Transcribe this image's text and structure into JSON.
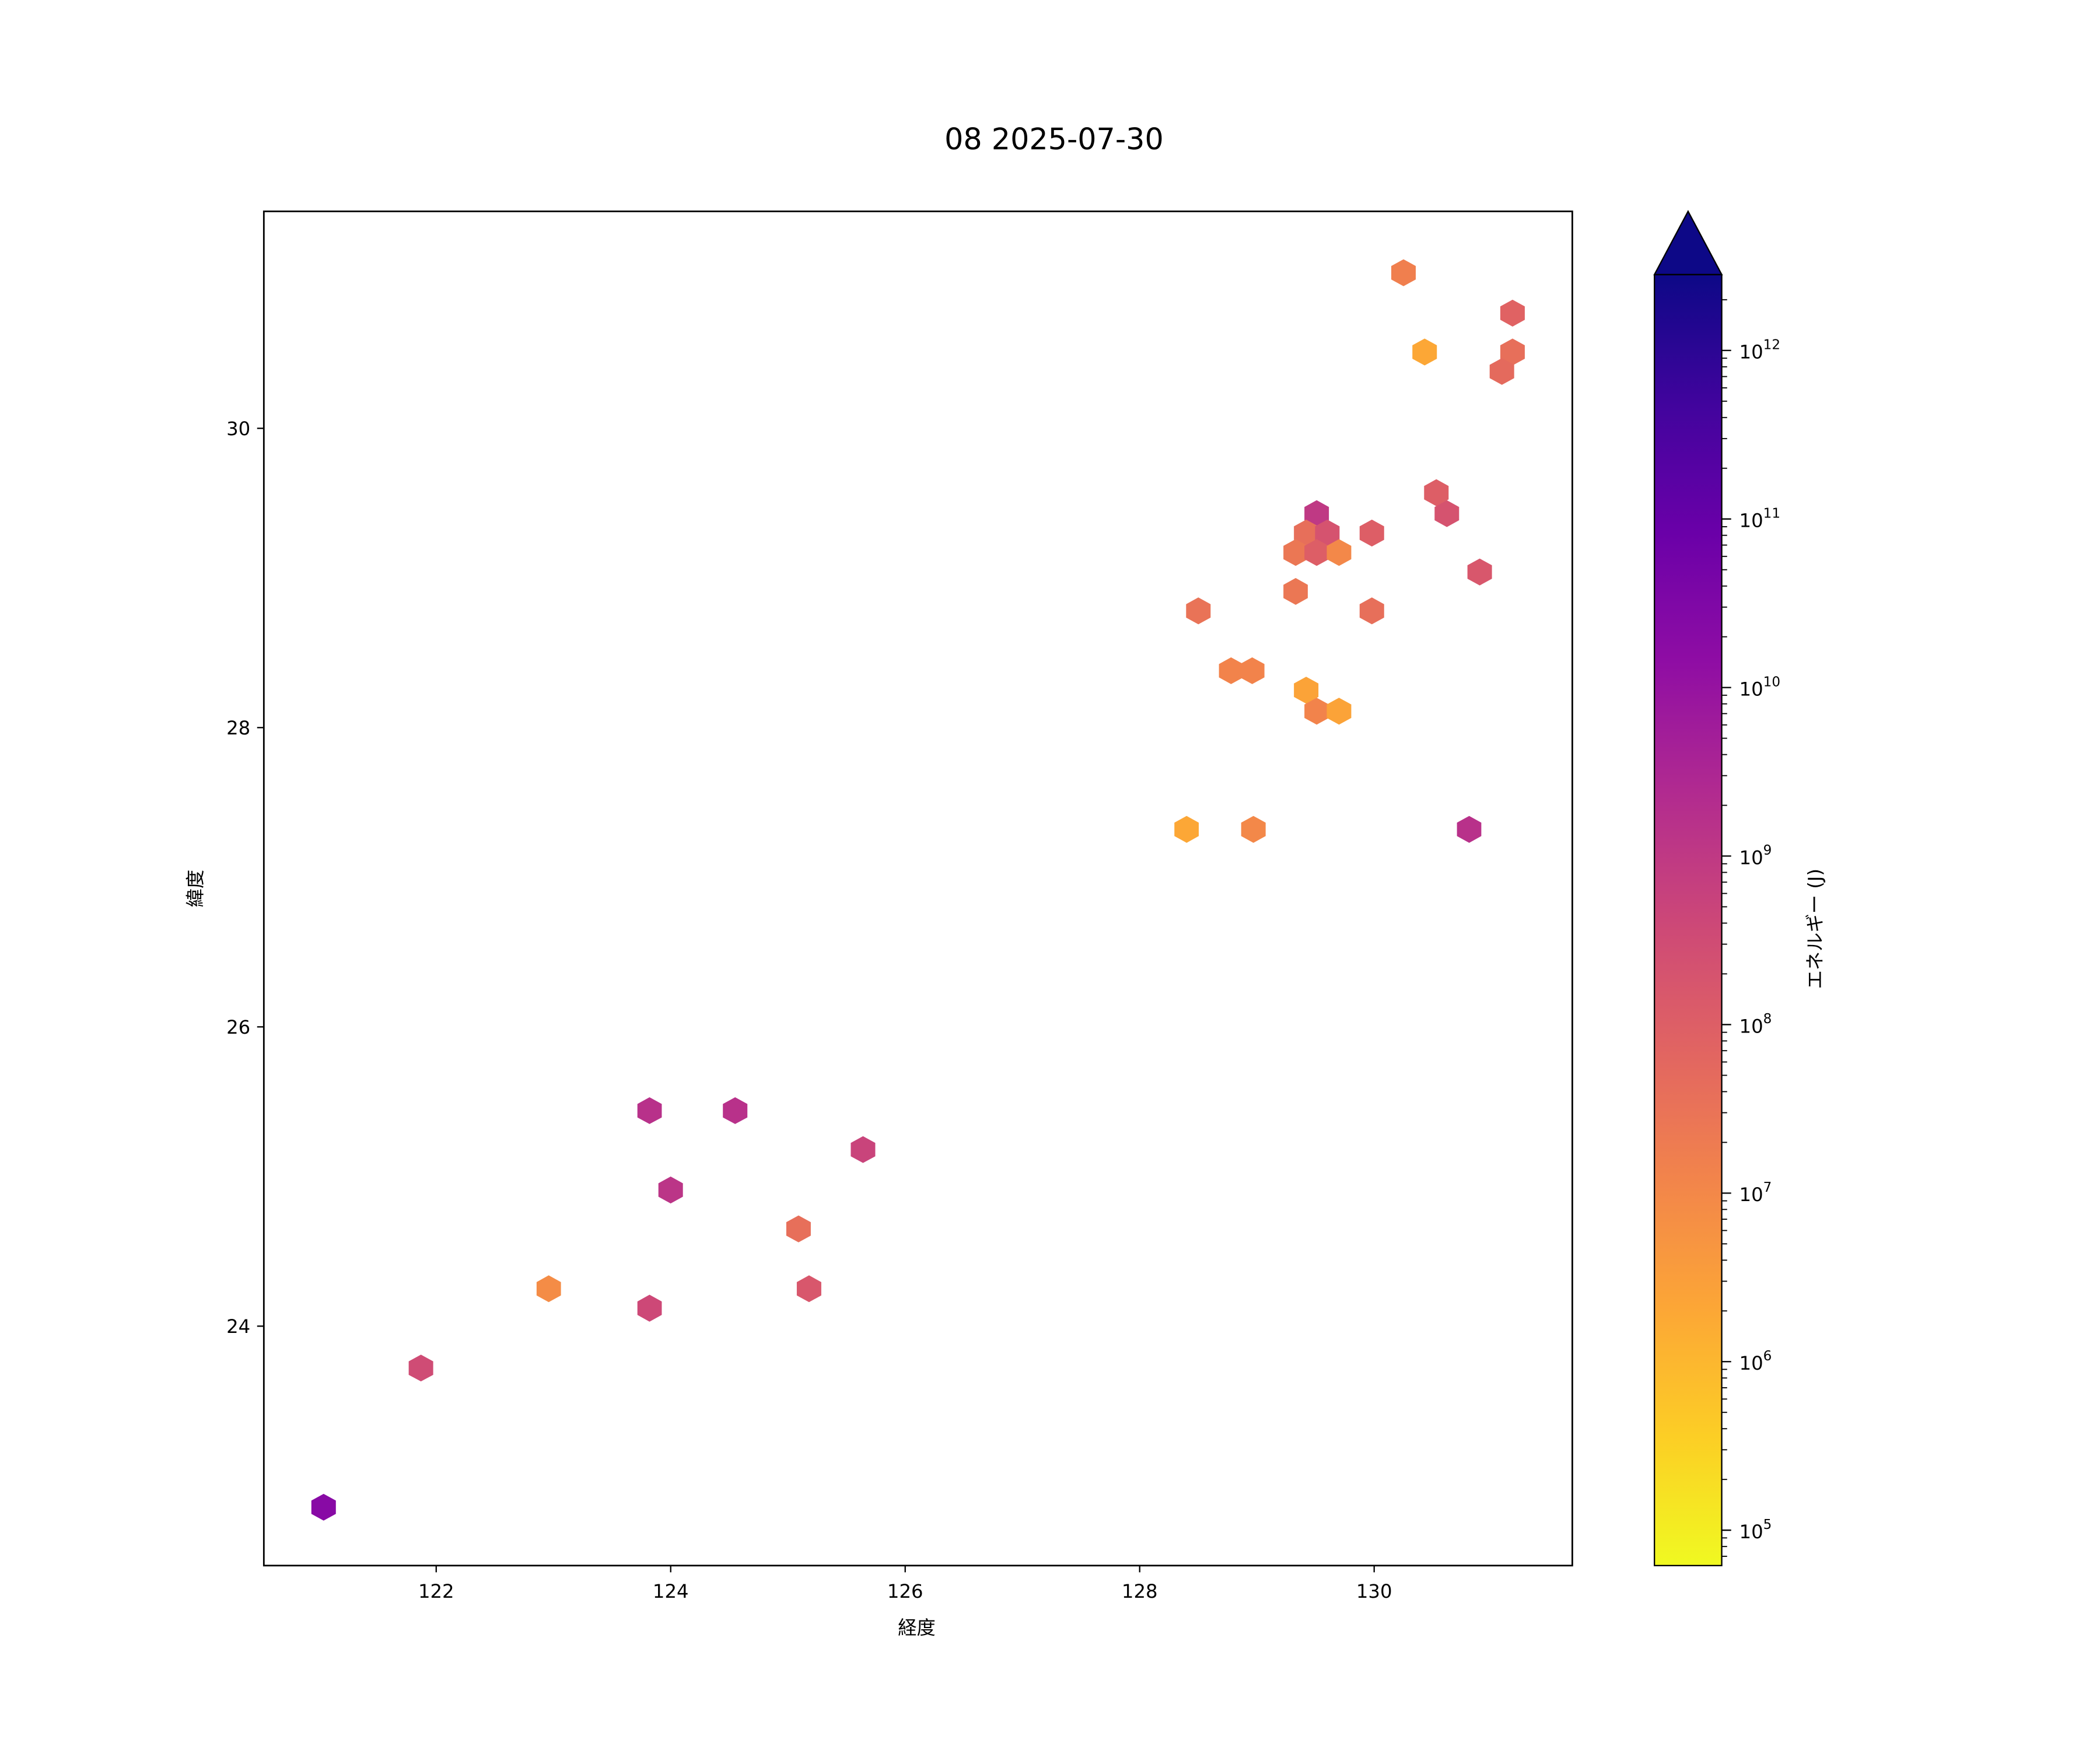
{
  "chart_data": {
    "type": "hexbin",
    "title": "08 2025-07-30",
    "xlabel": "経度",
    "ylabel": "緯度",
    "xlim": [
      120.53,
      131.69
    ],
    "ylim": [
      22.4,
      31.45
    ],
    "xticks": [
      122,
      124,
      126,
      128,
      130
    ],
    "yticks": [
      24,
      26,
      28,
      30
    ],
    "grid": false,
    "colorbar": {
      "label": "エネルギー (J)",
      "scale": "log",
      "range_log10": [
        4.79,
        12.45
      ],
      "ticks_log10": [
        5,
        6,
        7,
        8,
        9,
        10,
        11,
        12
      ],
      "extend": "max",
      "colormap": "plasma_r"
    },
    "points": [
      {
        "lon": 130.25,
        "lat": 31.04,
        "log10_energy": 7.2
      },
      {
        "lon": 131.18,
        "lat": 30.77,
        "log10_energy": 7.9
      },
      {
        "lon": 130.43,
        "lat": 30.51,
        "log10_energy": 6.3
      },
      {
        "lon": 131.18,
        "lat": 30.51,
        "log10_energy": 7.6
      },
      {
        "lon": 131.09,
        "lat": 30.38,
        "log10_energy": 7.7
      },
      {
        "lon": 130.53,
        "lat": 29.57,
        "log10_energy": 8.0
      },
      {
        "lon": 130.62,
        "lat": 29.43,
        "log10_energy": 8.3
      },
      {
        "lon": 129.51,
        "lat": 29.43,
        "log10_energy": 9.0
      },
      {
        "lon": 129.42,
        "lat": 29.3,
        "log10_energy": 7.6
      },
      {
        "lon": 129.6,
        "lat": 29.3,
        "log10_energy": 8.3
      },
      {
        "lon": 129.33,
        "lat": 29.17,
        "log10_energy": 7.4
      },
      {
        "lon": 129.51,
        "lat": 29.17,
        "log10_energy": 8.0
      },
      {
        "lon": 129.7,
        "lat": 29.17,
        "log10_energy": 7.0
      },
      {
        "lon": 129.98,
        "lat": 29.3,
        "log10_energy": 8.0
      },
      {
        "lon": 129.33,
        "lat": 28.91,
        "log10_energy": 7.4
      },
      {
        "lon": 130.9,
        "lat": 29.04,
        "log10_energy": 8.2
      },
      {
        "lon": 128.5,
        "lat": 28.78,
        "log10_energy": 7.5
      },
      {
        "lon": 129.98,
        "lat": 28.78,
        "log10_energy": 7.6
      },
      {
        "lon": 128.78,
        "lat": 28.38,
        "log10_energy": 7.1
      },
      {
        "lon": 128.96,
        "lat": 28.38,
        "log10_energy": 7.1
      },
      {
        "lon": 129.42,
        "lat": 28.25,
        "log10_energy": 6.4
      },
      {
        "lon": 129.51,
        "lat": 28.11,
        "log10_energy": 7.1
      },
      {
        "lon": 129.7,
        "lat": 28.11,
        "log10_energy": 6.4
      },
      {
        "lon": 128.4,
        "lat": 27.32,
        "log10_energy": 6.3
      },
      {
        "lon": 128.97,
        "lat": 27.32,
        "log10_energy": 7.0
      },
      {
        "lon": 130.81,
        "lat": 27.32,
        "log10_energy": 9.2
      },
      {
        "lon": 123.82,
        "lat": 25.44,
        "log10_energy": 9.2
      },
      {
        "lon": 124.55,
        "lat": 25.44,
        "log10_energy": 9.2
      },
      {
        "lon": 124.0,
        "lat": 24.91,
        "log10_energy": 9.1
      },
      {
        "lon": 125.64,
        "lat": 25.18,
        "log10_energy": 8.7
      },
      {
        "lon": 125.09,
        "lat": 24.65,
        "log10_energy": 7.6
      },
      {
        "lon": 122.96,
        "lat": 24.25,
        "log10_energy": 6.9
      },
      {
        "lon": 125.18,
        "lat": 24.25,
        "log10_energy": 8.2
      },
      {
        "lon": 123.82,
        "lat": 24.12,
        "log10_energy": 8.6
      },
      {
        "lon": 121.87,
        "lat": 23.72,
        "log10_energy": 8.5
      },
      {
        "lon": 121.04,
        "lat": 22.79,
        "log10_energy": 10.3
      }
    ]
  }
}
